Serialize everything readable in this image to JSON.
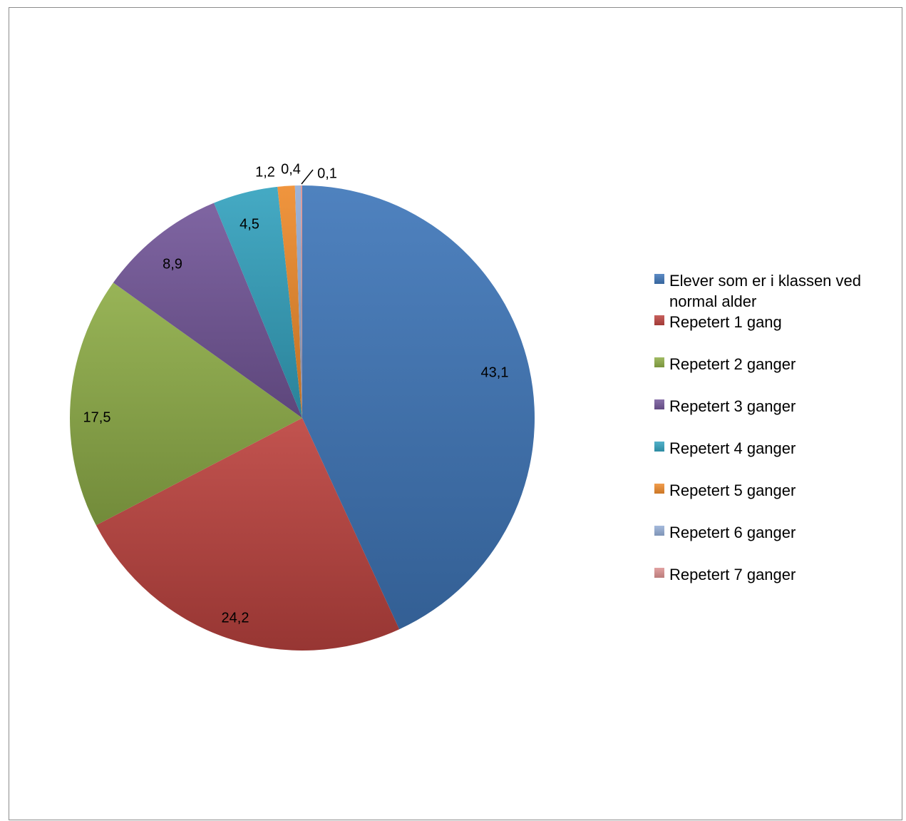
{
  "chart_data": {
    "type": "pie",
    "title": "",
    "categories": [
      "Elever som er i klassen ved normal alder",
      "Repetert 1 gang",
      "Repetert 2 ganger",
      "Repetert 3 ganger",
      "Repetert 4 ganger",
      "Repetert 5 ganger",
      "Repetert 6 ganger",
      "Repetert 7 ganger"
    ],
    "values": [
      43.1,
      24.2,
      17.5,
      8.9,
      4.5,
      1.2,
      0.4,
      0.1
    ],
    "data_labels": [
      "43,1",
      "24,2",
      "17,5",
      "8,9",
      "4,5",
      "1,2",
      "0,4",
      "0,1"
    ],
    "colors": [
      "#4077b9",
      "#bd4440",
      "#8fae48",
      "#74589a",
      "#35a3bf",
      "#ef8c2d",
      "#95aed6",
      "#dc9291"
    ],
    "start_angle": "12 o'clock",
    "direction": "clockwise",
    "legend_position": "right"
  }
}
